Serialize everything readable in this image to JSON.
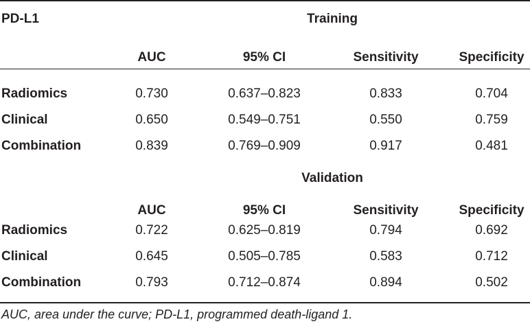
{
  "table": {
    "corner_label": "PD-L1",
    "columns": [
      "AUC",
      "95% CI",
      "Sensitivity",
      "Specificity"
    ],
    "sections": [
      {
        "title": "Training",
        "rows": [
          {
            "label": "Radiomics",
            "auc": "0.730",
            "ci": "0.637–0.823",
            "sensitivity": "0.833",
            "specificity": "0.704"
          },
          {
            "label": "Clinical",
            "auc": "0.650",
            "ci": "0.549–0.751",
            "sensitivity": "0.550",
            "specificity": "0.759"
          },
          {
            "label": "Combination",
            "auc": "0.839",
            "ci": "0.769–0.909",
            "sensitivity": "0.917",
            "specificity": "0.481"
          }
        ]
      },
      {
        "title": "Validation",
        "rows": [
          {
            "label": "Radiomics",
            "auc": "0.722",
            "ci": "0.625–0.819",
            "sensitivity": "0.794",
            "specificity": "0.692"
          },
          {
            "label": "Clinical",
            "auc": "0.645",
            "ci": "0.505–0.785",
            "sensitivity": "0.583",
            "specificity": "0.712"
          },
          {
            "label": "Combination",
            "auc": "0.793",
            "ci": "0.712–0.874",
            "sensitivity": "0.894",
            "specificity": "0.502"
          }
        ]
      }
    ],
    "footnote": "AUC, area under the curve; PD-L1, programmed death-ligand 1."
  }
}
